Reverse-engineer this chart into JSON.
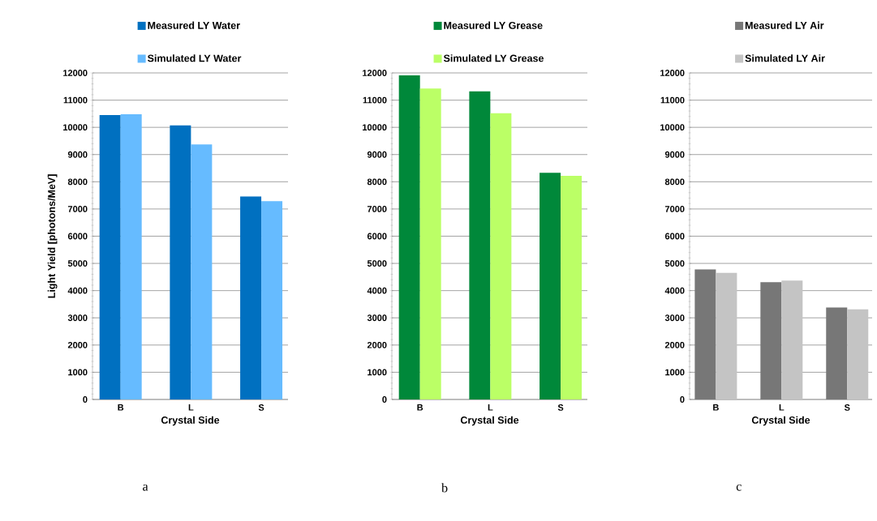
{
  "chart_data": [
    {
      "type": "bar",
      "categories": [
        "B",
        "L",
        "S"
      ],
      "xlabel": "Crystal Side",
      "ylabel": "Light Yield [photons/MeV]",
      "ylim": [
        0,
        12000
      ],
      "yticks": [
        0,
        1000,
        2000,
        3000,
        4000,
        5000,
        6000,
        7000,
        8000,
        9000,
        10000,
        11000,
        12000
      ],
      "grid": "y",
      "legend": "top",
      "annotations": [
        "a"
      ],
      "series": [
        {
          "name": "Measured LY Water",
          "color": "#0070c0",
          "values": [
            10450,
            10070,
            7460
          ]
        },
        {
          "name": "Simulated LY Water",
          "color": "#66bbff",
          "values": [
            10480,
            9370,
            7290
          ]
        }
      ]
    },
    {
      "type": "bar",
      "categories": [
        "B",
        "L",
        "S"
      ],
      "xlabel": "Crystal Side",
      "ylim": [
        0,
        12000
      ],
      "yticks": [
        0,
        1000,
        2000,
        3000,
        4000,
        5000,
        6000,
        7000,
        8000,
        9000,
        10000,
        11000,
        12000
      ],
      "grid": "y",
      "legend": "top",
      "annotations": [
        "b"
      ],
      "series": [
        {
          "name": "Measured LY Grease",
          "color": "#00883a",
          "values": [
            11910,
            11320,
            8330
          ]
        },
        {
          "name": "Simulated LY Grease",
          "color": "#bbff66",
          "values": [
            11430,
            10520,
            8220
          ]
        }
      ]
    },
    {
      "type": "bar",
      "categories": [
        "B",
        "L",
        "S"
      ],
      "xlabel": "Crystal Side",
      "ylim": [
        0,
        12000
      ],
      "yticks": [
        0,
        1000,
        2000,
        3000,
        4000,
        5000,
        6000,
        7000,
        8000,
        9000,
        10000,
        11000,
        12000
      ],
      "grid": "y",
      "legend": "top",
      "annotations": [
        "c"
      ],
      "series": [
        {
          "name": "Measured LY Air",
          "color": "#777777",
          "values": [
            4780,
            4310,
            3380
          ]
        },
        {
          "name": "Simulated LY Air",
          "color": "#c4c4c4",
          "values": [
            4650,
            4370,
            3310
          ]
        }
      ]
    }
  ]
}
